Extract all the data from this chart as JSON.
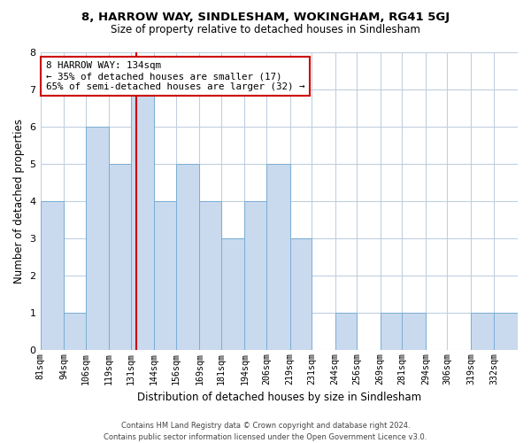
{
  "title": "8, HARROW WAY, SINDLESHAM, WOKINGHAM, RG41 5GJ",
  "subtitle": "Size of property relative to detached houses in Sindlesham",
  "xlabel": "Distribution of detached houses by size in Sindlesham",
  "ylabel": "Number of detached properties",
  "bin_labels": [
    "81sqm",
    "94sqm",
    "106sqm",
    "119sqm",
    "131sqm",
    "144sqm",
    "156sqm",
    "169sqm",
    "181sqm",
    "194sqm",
    "206sqm",
    "219sqm",
    "231sqm",
    "244sqm",
    "256sqm",
    "269sqm",
    "281sqm",
    "294sqm",
    "306sqm",
    "319sqm",
    "332sqm"
  ],
  "bin_edges": [
    81,
    94,
    106,
    119,
    131,
    144,
    156,
    169,
    181,
    194,
    206,
    219,
    231,
    244,
    256,
    269,
    281,
    294,
    306,
    319,
    332,
    345
  ],
  "counts": [
    4,
    1,
    6,
    5,
    7,
    4,
    5,
    4,
    3,
    4,
    5,
    3,
    0,
    1,
    0,
    1,
    1,
    0,
    0,
    1,
    1
  ],
  "bar_color": "#c9d9ee",
  "bar_edge_color": "#7aaed4",
  "property_size": 134,
  "vline_color": "#cc0000",
  "annotation_line1": "8 HARROW WAY: 134sqm",
  "annotation_line2": "← 35% of detached houses are smaller (17)",
  "annotation_line3": "65% of semi-detached houses are larger (32) →",
  "annotation_box_color": "#ffffff",
  "annotation_box_edge": "#cc0000",
  "ylim": [
    0,
    8
  ],
  "yticks": [
    0,
    1,
    2,
    3,
    4,
    5,
    6,
    7,
    8
  ],
  "footer_line1": "Contains HM Land Registry data © Crown copyright and database right 2024.",
  "footer_line2": "Contains public sector information licensed under the Open Government Licence v3.0.",
  "background_color": "#ffffff",
  "grid_color": "#c0d0e0"
}
